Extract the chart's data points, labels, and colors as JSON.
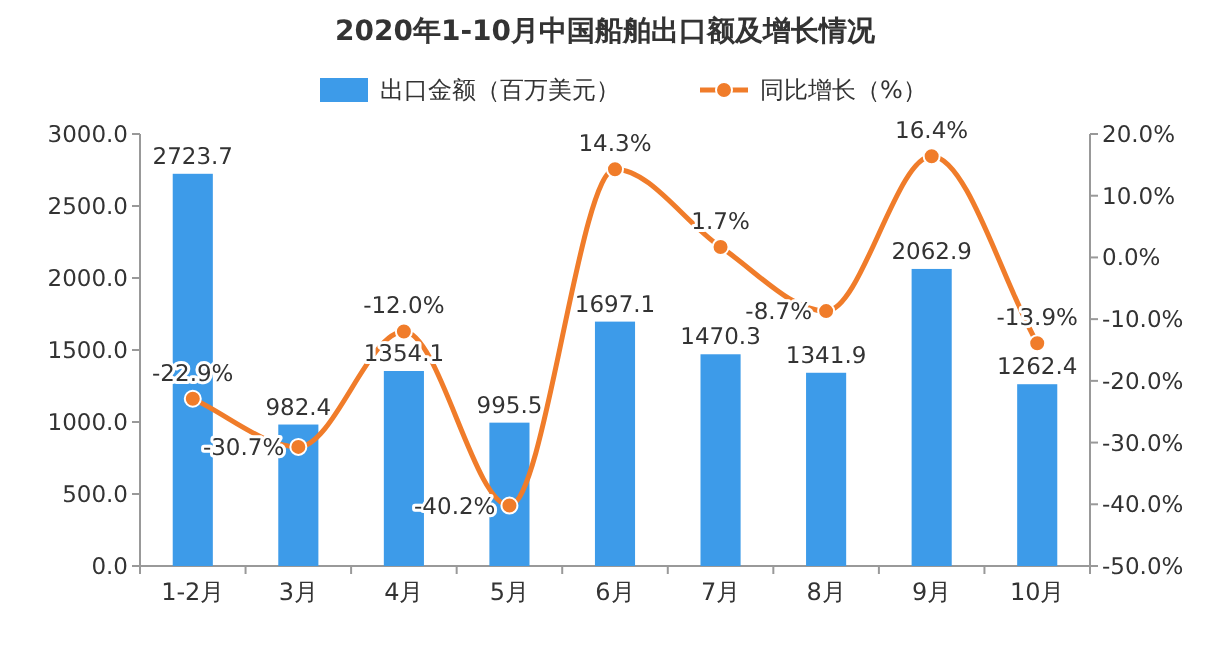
{
  "chart_data": {
    "type": "bar",
    "title": "2020年1-10月中国船舶出口额及增长情况",
    "categories": [
      "1-2月",
      "3月",
      "4月",
      "5月",
      "6月",
      "7月",
      "8月",
      "9月",
      "10月"
    ],
    "series": [
      {
        "name": "出口金额（百万美元）",
        "color": "#3d9be9",
        "values": [
          2723.7,
          982.4,
          1354.1,
          995.5,
          1697.1,
          1470.3,
          1341.9,
          2062.9,
          1262.4
        ],
        "value_labels": [
          "2723.7",
          "982.4",
          "1354.1",
          "995.5",
          "1697.1",
          "1470.3",
          "1341.9",
          "2062.9",
          "1262.4"
        ]
      },
      {
        "name": "同比增长（%）",
        "type": "line",
        "axis": "y2",
        "color": "#f07c2a",
        "marker": "circle",
        "values": [
          -22.9,
          -30.7,
          -12.0,
          -40.2,
          14.3,
          1.7,
          -8.7,
          16.4,
          -13.9
        ],
        "value_labels": [
          "-22.9%",
          "-30.7%",
          "-12.0%",
          "-40.2%",
          "14.3%",
          "1.7%",
          "-8.7%",
          "16.4%",
          "-13.9%"
        ]
      }
    ],
    "ylim": [
      0,
      3000
    ],
    "yticks": [
      {
        "value": 0,
        "label": "0.0"
      },
      {
        "value": 500,
        "label": "500.0"
      },
      {
        "value": 1000,
        "label": "1000.0"
      },
      {
        "value": 1500,
        "label": "1500.0"
      },
      {
        "value": 2000,
        "label": "2000.0"
      },
      {
        "value": 2500,
        "label": "2500.0"
      },
      {
        "value": 3000,
        "label": "3000.0"
      }
    ],
    "y2lim": [
      -50,
      20
    ],
    "y2ticks": [
      {
        "value": -50,
        "label": "-50.0%"
      },
      {
        "value": -40,
        "label": "-40.0%"
      },
      {
        "value": -30,
        "label": "-30.0%"
      },
      {
        "value": -20,
        "label": "-20.0%"
      },
      {
        "value": -10,
        "label": "-10.0%"
      },
      {
        "value": 0,
        "label": "0.0%"
      },
      {
        "value": 10,
        "label": "10.0%"
      },
      {
        "value": 20,
        "label": "20.0%"
      }
    ],
    "legend": "top"
  }
}
